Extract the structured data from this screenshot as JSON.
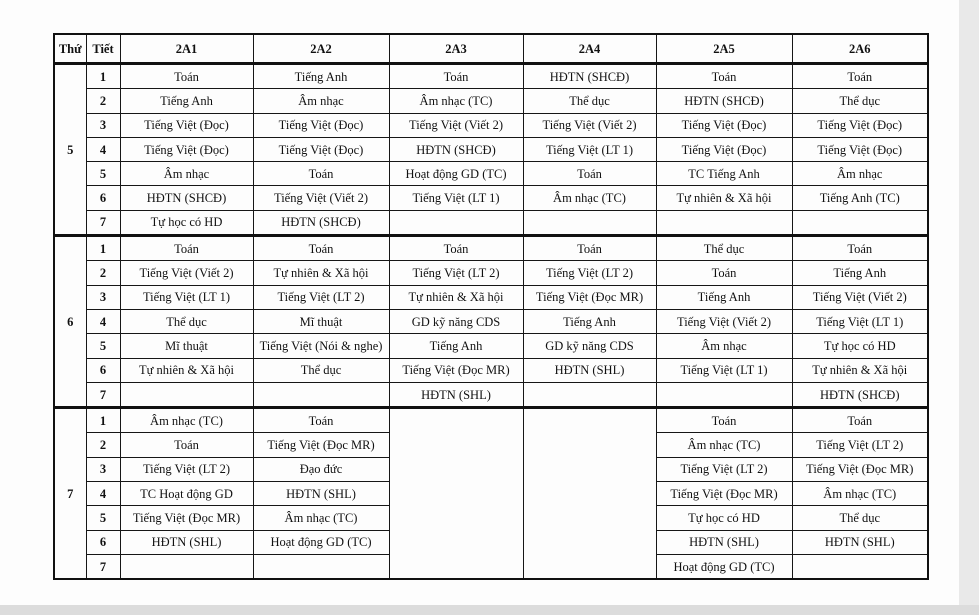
{
  "header": {
    "day": "Thứ",
    "period": "Tiết",
    "classes": [
      "2A1",
      "2A2",
      "2A3",
      "2A4",
      "2A5",
      "2A6"
    ]
  },
  "days": [
    {
      "day": "5",
      "periods": [
        {
          "period": "1",
          "cells": [
            "Toán",
            "Tiếng Anh",
            "Toán",
            "HĐTN (SHCĐ)",
            "Toán",
            "Toán"
          ]
        },
        {
          "period": "2",
          "cells": [
            "Tiếng Anh",
            "Âm nhạc",
            "Âm nhạc (TC)",
            "Thể dục",
            "HĐTN (SHCĐ)",
            "Thể dục"
          ]
        },
        {
          "period": "3",
          "cells": [
            "Tiếng Việt (Đọc)",
            "Tiếng Việt (Đọc)",
            "Tiếng Việt (Viết 2)",
            "Tiếng Việt (Viết 2)",
            "Tiếng Việt (Đọc)",
            "Tiếng Việt (Đọc)"
          ]
        },
        {
          "period": "4",
          "cells": [
            "Tiếng Việt (Đọc)",
            "Tiếng Việt (Đọc)",
            "HĐTN (SHCĐ)",
            "Tiếng Việt (LT 1)",
            "Tiếng Việt (Đọc)",
            "Tiếng Việt (Đọc)"
          ]
        },
        {
          "period": "5",
          "cells": [
            "Âm nhạc",
            "Toán",
            "Hoạt động GD (TC)",
            "Toán",
            "TC Tiếng Anh",
            "Âm nhạc"
          ]
        },
        {
          "period": "6",
          "cells": [
            "HĐTN (SHCĐ)",
            "Tiếng Việt (Viết 2)",
            "Tiếng Việt (LT 1)",
            "Âm nhạc (TC)",
            "Tự nhiên & Xã hội",
            "Tiếng Anh (TC)"
          ]
        },
        {
          "period": "7",
          "cells": [
            "Tự học có HD",
            "HĐTN (SHCĐ)",
            "",
            "",
            "",
            ""
          ]
        }
      ]
    },
    {
      "day": "6",
      "periods": [
        {
          "period": "1",
          "cells": [
            "Toán",
            "Toán",
            "Toán",
            "Toán",
            "Thể dục",
            "Toán"
          ]
        },
        {
          "period": "2",
          "cells": [
            "Tiếng Việt (Viết 2)",
            "Tự nhiên & Xã hội",
            "Tiếng Việt (LT 2)",
            "Tiếng Việt (LT 2)",
            "Toán",
            "Tiếng Anh"
          ]
        },
        {
          "period": "3",
          "cells": [
            "Tiếng Việt (LT 1)",
            "Tiếng Việt (LT 2)",
            "Tự nhiên & Xã hội",
            "Tiếng Việt (Đọc MR)",
            "Tiếng Anh",
            "Tiếng Việt (Viết 2)"
          ]
        },
        {
          "period": "4",
          "cells": [
            "Thể dục",
            "Mĩ thuật",
            "GD kỹ năng CDS",
            "Tiếng Anh",
            "Tiếng Việt (Viết 2)",
            "Tiếng Việt (LT 1)"
          ]
        },
        {
          "period": "5",
          "cells": [
            "Mĩ thuật",
            "Tiếng Việt (Nói & nghe)",
            "Tiếng Anh",
            "GD kỹ năng CDS",
            "Âm nhạc",
            "Tự học có HD"
          ]
        },
        {
          "period": "6",
          "cells": [
            "Tự nhiên & Xã hội",
            "Thể dục",
            "Tiếng Việt (Đọc MR)",
            "HĐTN (SHL)",
            "Tiếng Việt (LT 1)",
            "Tự nhiên & Xã hội"
          ]
        },
        {
          "period": "7",
          "cells": [
            "",
            "",
            "HĐTN (SHL)",
            "",
            "",
            "HĐTN (SHCĐ)"
          ]
        }
      ]
    },
    {
      "day": "7",
      "merged_empty_classes": [
        "2A3",
        "2A4"
      ],
      "periods": [
        {
          "period": "1",
          "cells": [
            "Âm nhạc (TC)",
            "Toán",
            "",
            "",
            "Toán",
            "Toán"
          ]
        },
        {
          "period": "2",
          "cells": [
            "Toán",
            "Tiếng Việt (Đọc MR)",
            "",
            "",
            "Âm nhạc (TC)",
            "Tiếng Việt (LT 2)"
          ]
        },
        {
          "period": "3",
          "cells": [
            "Tiếng Việt (LT 2)",
            "Đạo đức",
            "",
            "",
            "Tiếng Việt (LT 2)",
            "Tiếng Việt (Đọc MR)"
          ]
        },
        {
          "period": "4",
          "cells": [
            "TC Hoạt động GD",
            "HĐTN (SHL)",
            "",
            "",
            "Tiếng Việt (Đọc MR)",
            "Âm nhạc (TC)"
          ]
        },
        {
          "period": "5",
          "cells": [
            "Tiếng Việt (Đọc MR)",
            "Âm nhạc (TC)",
            "",
            "",
            "Tự học có HD",
            "Thể dục"
          ]
        },
        {
          "period": "6",
          "cells": [
            "HĐTN (SHL)",
            "Hoạt động GD (TC)",
            "",
            "",
            "HĐTN (SHL)",
            "HĐTN (SHL)"
          ]
        },
        {
          "period": "7",
          "cells": [
            "",
            "",
            "",
            "",
            "Hoạt động GD (TC)",
            ""
          ]
        }
      ]
    }
  ]
}
